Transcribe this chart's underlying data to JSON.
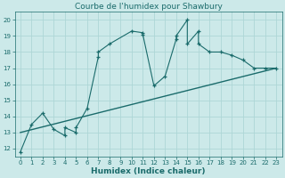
{
  "title": "Courbe de l'humidex pour Shawbury",
  "xlabel": "Humidex (Indice chaleur)",
  "xlim": [
    -0.5,
    23.5
  ],
  "ylim": [
    11.5,
    20.5
  ],
  "xticks": [
    0,
    1,
    2,
    3,
    4,
    5,
    6,
    7,
    8,
    9,
    10,
    11,
    12,
    13,
    14,
    15,
    16,
    17,
    18,
    19,
    20,
    21,
    22,
    23
  ],
  "yticks": [
    12,
    13,
    14,
    15,
    16,
    17,
    18,
    19,
    20
  ],
  "bg_color": "#cce9e9",
  "grid_color": "#aed6d6",
  "line_color": "#1a6b6b",
  "line1_x": [
    0,
    1,
    2,
    3,
    4,
    4,
    5,
    5,
    6,
    7,
    7,
    8,
    10,
    11,
    11,
    12,
    13,
    14,
    14,
    15,
    15,
    16,
    16,
    17,
    18,
    19,
    20,
    21,
    22,
    23
  ],
  "line1_y": [
    11.8,
    13.5,
    14.2,
    13.2,
    12.8,
    13.3,
    13.0,
    13.3,
    14.5,
    17.7,
    18.0,
    18.5,
    19.3,
    19.2,
    19.1,
    15.9,
    16.5,
    18.8,
    19.0,
    20.0,
    18.5,
    19.3,
    18.5,
    18.0,
    18.0,
    17.8,
    17.5,
    17.0,
    17.0,
    17.0
  ],
  "line2_x": [
    0,
    23
  ],
  "line2_y": [
    13.0,
    17.0
  ],
  "title_fontsize": 6.5,
  "xlabel_fontsize": 6.5,
  "tick_fontsize": 5.0
}
